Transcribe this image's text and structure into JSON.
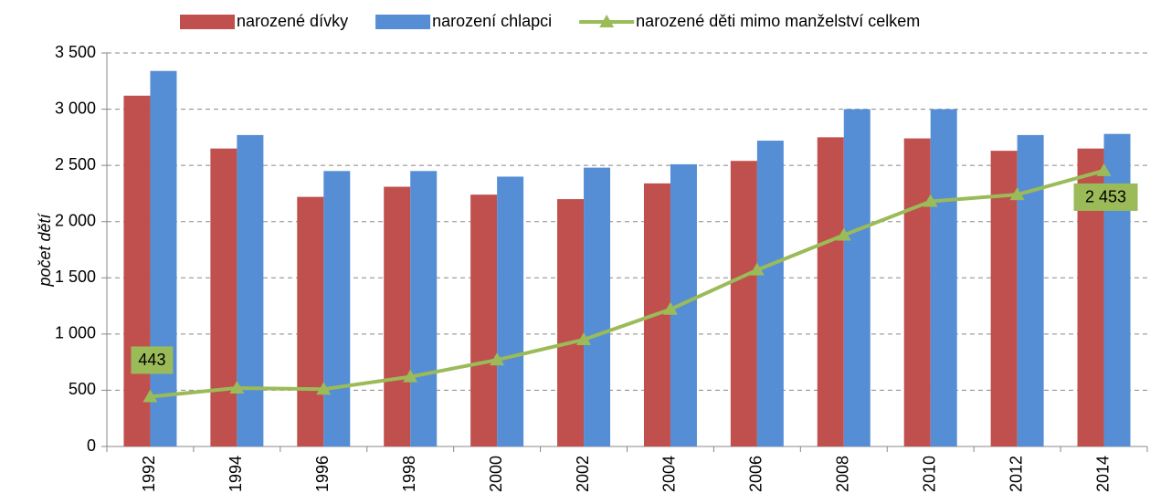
{
  "chart_data": {
    "type": "bar_line",
    "y_label": "počet dětí",
    "categories": [
      "1992",
      "1994",
      "1996",
      "1998",
      "2000",
      "2002",
      "2004",
      "2006",
      "2008",
      "2010",
      "2012",
      "2014"
    ],
    "series": [
      {
        "name": "narozené dívky",
        "type": "bar",
        "color": "#c0504d",
        "values": [
          3120,
          2650,
          2220,
          2310,
          2240,
          2200,
          2340,
          2540,
          2750,
          2740,
          2630,
          2650
        ]
      },
      {
        "name": "narození chlapci",
        "type": "bar",
        "color": "#558ed5",
        "values": [
          3340,
          2770,
          2450,
          2450,
          2400,
          2480,
          2510,
          2720,
          3000,
          3000,
          2770,
          2780
        ]
      },
      {
        "name": "narozené děti mimo manželství celkem",
        "type": "line",
        "color": "#9bbb59",
        "values": [
          443,
          520,
          510,
          620,
          770,
          950,
          1220,
          1570,
          1880,
          2180,
          2240,
          2453
        ],
        "value_labels": [
          "443",
          null,
          null,
          null,
          null,
          null,
          null,
          null,
          null,
          null,
          null,
          "2 453"
        ]
      }
    ],
    "ylim": [
      0,
      3500
    ],
    "yticks": [
      0,
      500,
      {
        "value": 1000,
        "label": "1 000"
      },
      {
        "value": 1500,
        "label": "1 500"
      },
      {
        "value": 2000,
        "label": "2 000"
      },
      {
        "value": 2500,
        "label": "2 500"
      },
      {
        "value": 3000,
        "label": "3 000"
      },
      {
        "value": 3500,
        "label": "3 500"
      }
    ],
    "grid": true,
    "legend": "top"
  }
}
